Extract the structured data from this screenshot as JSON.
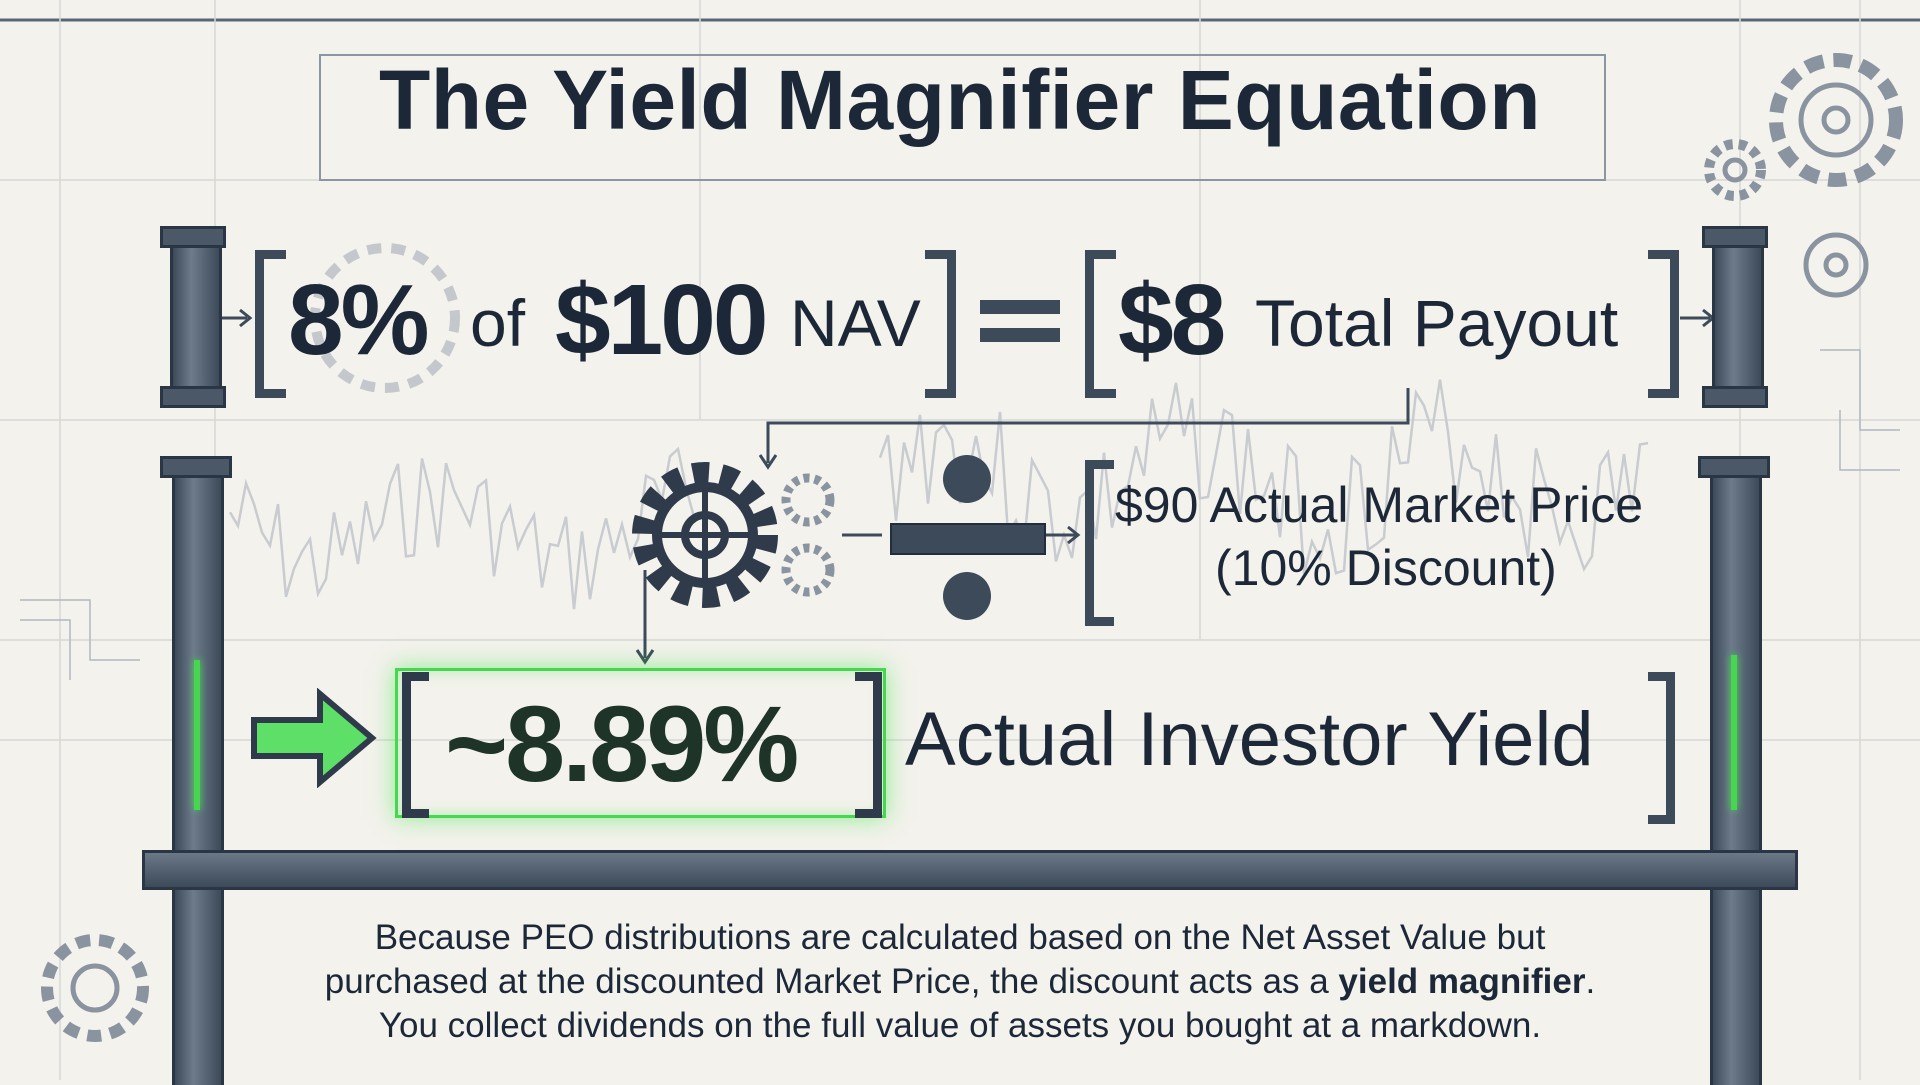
{
  "title": "The Yield Magnifier Equation",
  "row1": {
    "rate": "8%",
    "of": "of",
    "nav_amount": "$100",
    "nav_label": "NAV",
    "payout_amount": "$8",
    "payout_label": "Total Payout"
  },
  "row2": {
    "price_line": "$90 Actual Market Price",
    "discount_line": "(10% Discount)"
  },
  "row3": {
    "yield_value": "~8.89%",
    "yield_label": "Actual Investor Yield"
  },
  "explanation": {
    "line1": "Because PEO distributions are calculated based on the Net Asset Value but",
    "line2_prefix": "purchased at the discounted Market Price, the discount acts as a ",
    "line2_bold": "yield magnifier",
    "line2_suffix": ".",
    "line3": "You collect dividends on the full value of assets you bought at a markdown."
  },
  "colors": {
    "navy": "#1c2838",
    "accent_green": "#46d650",
    "background": "#f3f2ec"
  },
  "icons": [
    "gear-icon",
    "divide-icon",
    "arrow-right-icon",
    "pillar-column"
  ]
}
